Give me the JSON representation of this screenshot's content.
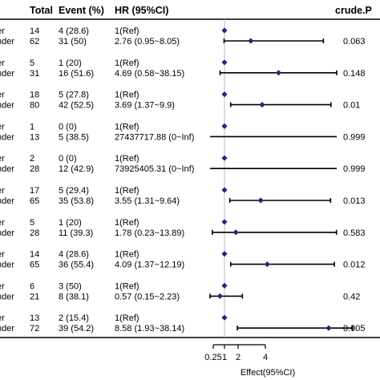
{
  "chart_data": {
    "type": "forest",
    "columns": {
      "group": "",
      "total": "Total",
      "event": "Event (%)",
      "hr": "HR (95%CI)",
      "p": "crude.P"
    },
    "xlabel": "Effect(95%CI)",
    "xticks": [
      {
        "value": 0.25,
        "label": "0.25"
      },
      {
        "value": 1,
        "label": "1"
      },
      {
        "value": 2,
        "label": "2"
      },
      {
        "value": 4,
        "label": "4"
      }
    ],
    "reference_line": 1,
    "rows": [
      {
        "group": "er",
        "total": "14",
        "event": "4 (28.6)",
        "hr": "1(Ref)",
        "p": "",
        "est": 1,
        "lo": null,
        "hi": null
      },
      {
        "group": "nder",
        "total": "62",
        "event": "31 (50)",
        "hr": "2.76 (0.95~8.05)",
        "p": "0.063",
        "est": 2.76,
        "lo": 0.95,
        "hi": 8.05
      },
      {
        "group": "er",
        "total": "5",
        "event": "1 (20)",
        "hr": "1(Ref)",
        "p": "",
        "est": 1,
        "lo": null,
        "hi": null
      },
      {
        "group": "nder",
        "total": "31",
        "event": "16 (51.6)",
        "hr": "4.69 (0.58~38.15)",
        "p": "0.148",
        "est": 4.69,
        "lo": 0.58,
        "hi": 38.15
      },
      {
        "group": "er",
        "total": "18",
        "event": "5 (27.8)",
        "hr": "1(Ref)",
        "p": "",
        "est": 1,
        "lo": null,
        "hi": null
      },
      {
        "group": "nder",
        "total": "80",
        "event": "42 (52.5)",
        "hr": "3.69 (1.37~9.9)",
        "p": "0.01",
        "est": 3.69,
        "lo": 1.37,
        "hi": 9.9
      },
      {
        "group": "er",
        "total": "1",
        "event": "0 (0)",
        "hr": "1(Ref)",
        "p": "",
        "est": 1,
        "lo": null,
        "hi": null
      },
      {
        "group": "nder",
        "total": "13",
        "event": "5 (38.5)",
        "hr": "27437717.88 (0~Inf)",
        "p": "0.999",
        "est": 27437717.88,
        "lo": 0,
        "hi": "Inf"
      },
      {
        "group": "er",
        "total": "2",
        "event": "0 (0)",
        "hr": "1(Ref)",
        "p": "",
        "est": 1,
        "lo": null,
        "hi": null
      },
      {
        "group": "nder",
        "total": "28",
        "event": "12 (42.9)",
        "hr": "73925405.31 (0~Inf)",
        "p": "0.999",
        "est": 73925405.31,
        "lo": 0,
        "hi": "Inf"
      },
      {
        "group": "er",
        "total": "17",
        "event": "5 (29.4)",
        "hr": "1(Ref)",
        "p": "",
        "est": 1,
        "lo": null,
        "hi": null
      },
      {
        "group": "nder",
        "total": "65",
        "event": "35 (53.8)",
        "hr": "3.55 (1.31~9.64)",
        "p": "0.013",
        "est": 3.55,
        "lo": 1.31,
        "hi": 9.64
      },
      {
        "group": "er",
        "total": "5",
        "event": "1 (20)",
        "hr": "1(Ref)",
        "p": "",
        "est": 1,
        "lo": null,
        "hi": null
      },
      {
        "group": "nder",
        "total": "28",
        "event": "11 (39.3)",
        "hr": "1.78 (0.23~13.89)",
        "p": "0.583",
        "est": 1.78,
        "lo": 0.23,
        "hi": 13.89
      },
      {
        "group": "er",
        "total": "14",
        "event": "4 (28.6)",
        "hr": "1(Ref)",
        "p": "",
        "est": 1,
        "lo": null,
        "hi": null
      },
      {
        "group": "nder",
        "total": "65",
        "event": "36 (55.4)",
        "hr": "4.09 (1.37~12.19)",
        "p": "0.012",
        "est": 4.09,
        "lo": 1.37,
        "hi": 12.19
      },
      {
        "group": "er",
        "total": "6",
        "event": "3 (50)",
        "hr": "1(Ref)",
        "p": "",
        "est": 1,
        "lo": null,
        "hi": null
      },
      {
        "group": "nder",
        "total": "21",
        "event": "8 (38.1)",
        "hr": "0.57 (0.15~2.23)",
        "p": "0.42",
        "est": 0.57,
        "lo": 0.15,
        "hi": 2.23
      },
      {
        "group": "er",
        "total": "13",
        "event": "2 (15.4)",
        "hr": "1(Ref)",
        "p": "",
        "est": 1,
        "lo": null,
        "hi": null
      },
      {
        "group": "nder",
        "total": "72",
        "event": "39 (54.2)",
        "hr": "8.58 (1.93~38.14)",
        "p": "0.005",
        "est": 8.58,
        "lo": 1.93,
        "hi": 38.14
      }
    ],
    "colors": {
      "marker": "#1f2a7a",
      "line": "#000000",
      "reference": "#bbbbbb"
    }
  }
}
